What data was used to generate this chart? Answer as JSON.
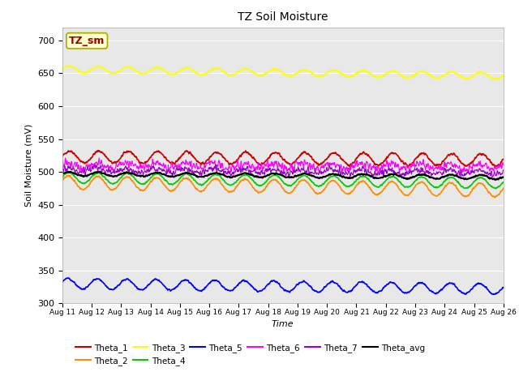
{
  "title": "TZ Soil Moisture",
  "xlabel": "Time",
  "ylabel": "Soil Moisture (mV)",
  "ylim": [
    300,
    720
  ],
  "yticks": [
    300,
    350,
    400,
    450,
    500,
    550,
    600,
    650,
    700
  ],
  "x_start_day": 11,
  "x_end_day": 26,
  "n_points": 1500,
  "series": [
    {
      "name": "Theta_1",
      "color": "#cc0000",
      "base": 523,
      "amplitude": 9,
      "trend": -5,
      "noise": 1.5,
      "period": 1.0,
      "phase": 0.0,
      "lw": 1.2
    },
    {
      "name": "Theta_2",
      "color": "#ff8c00",
      "base": 484,
      "amplitude": 10,
      "trend": -12,
      "noise": 1.0,
      "period": 1.0,
      "phase": 0.3,
      "lw": 1.2
    },
    {
      "name": "Theta_3",
      "color": "#ffff00",
      "base": 656,
      "amplitude": 5,
      "trend": -10,
      "noise": 0.5,
      "period": 1.0,
      "phase": 0.1,
      "lw": 1.5
    },
    {
      "name": "Theta_4",
      "color": "#00cc00",
      "base": 491,
      "amplitude": 8,
      "trend": -8,
      "noise": 0.8,
      "period": 1.0,
      "phase": 0.2,
      "lw": 1.2
    },
    {
      "name": "Theta_5",
      "color": "#0000ff",
      "base": 330,
      "amplitude": 8,
      "trend": -8,
      "noise": 1.0,
      "period": 1.0,
      "phase": 0.4,
      "lw": 1.2
    },
    {
      "name": "Theta_6",
      "color": "#ff00ff",
      "base": 510,
      "amplitude": 4,
      "trend": -2,
      "noise": 5.0,
      "period": 1.0,
      "phase": 0.5,
      "lw": 0.8
    },
    {
      "name": "Theta_7",
      "color": "#9900cc",
      "base": 503,
      "amplitude": 3,
      "trend": -4,
      "noise": 4.0,
      "period": 1.0,
      "phase": 0.6,
      "lw": 0.8
    },
    {
      "name": "Theta_avg",
      "color": "#000000",
      "base": 497,
      "amplitude": 3,
      "trend": -5,
      "noise": 0.8,
      "period": 1.0,
      "phase": 0.15,
      "lw": 1.5
    }
  ],
  "legend_order_row1": [
    "Theta_1",
    "Theta_2",
    "Theta_3",
    "Theta_4",
    "Theta_5",
    "Theta_6"
  ],
  "legend_order_row2": [
    "Theta_7",
    "Theta_avg"
  ],
  "box_label": "TZ_sm",
  "box_bg": "#ffffcc",
  "box_text_color": "#990000",
  "box_edge_color": "#aaaa00",
  "plot_bg": "#e8e8e8",
  "fig_bg": "#ffffff",
  "x_tick_days": [
    11,
    12,
    13,
    14,
    15,
    16,
    17,
    18,
    19,
    20,
    21,
    22,
    23,
    24,
    25,
    26
  ]
}
